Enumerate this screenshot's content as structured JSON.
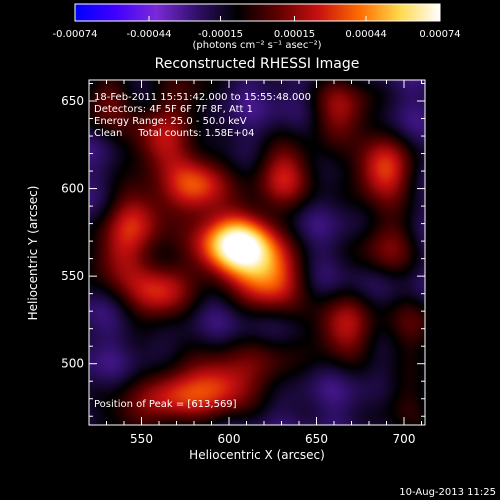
{
  "chart_data": {
    "type": "heatmap",
    "title": "Reconstructed RHESSI Image",
    "xlabel": "Heliocentric X (arcsec)",
    "ylabel": "Heliocentric Y (arcsec)",
    "xlim": [
      520,
      712
    ],
    "ylim": [
      465,
      662
    ],
    "xticks": [
      550,
      600,
      650,
      700
    ],
    "yticks": [
      500,
      550,
      600,
      650
    ],
    "colorbar": {
      "min": -0.00074,
      "max": 0.00074,
      "ticks": [
        "-0.00074",
        "-0.00044",
        "-0.00015",
        "0.00015",
        "0.00044",
        "0.00074"
      ],
      "tick_values": [
        -0.00074,
        -0.00044,
        -0.00015,
        0.00015,
        0.00044,
        0.00074
      ],
      "unit_label": "(photons cm⁻² s⁻¹ asec⁻²)",
      "colors": [
        "#0000ff",
        "#4000ff",
        "#7a2ad8",
        "#30106a",
        "#000000",
        "#600000",
        "#c81010",
        "#ff6a00",
        "#ffd84a",
        "#ffffff"
      ]
    },
    "annotations": [
      "18-Feb-2011 15:51:42.000 to 15:55:48.000",
      "Detectors: 4F 5F 6F 7F 8F, Att 1",
      "Energy Range: 25.0 - 50.0 keV",
      "Clean     Total counts: 1.58E+04"
    ],
    "peak_text": "Position of Peak = [613,569]",
    "peak": [
      613,
      569
    ],
    "sources": [
      {
        "x": 611,
        "y": 568,
        "v": 0.00074
      },
      {
        "x": 594,
        "y": 566,
        "v": 0.00052
      },
      {
        "x": 624,
        "y": 548,
        "v": 0.00058
      },
      {
        "x": 582,
        "y": 602,
        "v": 0.00056
      },
      {
        "x": 560,
        "y": 626,
        "v": 0.00042
      },
      {
        "x": 548,
        "y": 584,
        "v": 0.00044
      },
      {
        "x": 535,
        "y": 560,
        "v": 0.00036
      },
      {
        "x": 560,
        "y": 540,
        "v": 0.0005
      },
      {
        "x": 632,
        "y": 608,
        "v": 0.00048
      },
      {
        "x": 688,
        "y": 610,
        "v": 0.00056
      },
      {
        "x": 665,
        "y": 645,
        "v": 0.00042
      },
      {
        "x": 690,
        "y": 568,
        "v": 0.00034
      },
      {
        "x": 665,
        "y": 520,
        "v": 0.00046
      },
      {
        "x": 595,
        "y": 488,
        "v": 0.00052
      },
      {
        "x": 568,
        "y": 482,
        "v": 0.00046
      },
      {
        "x": 623,
        "y": 498,
        "v": 0.00026
      },
      {
        "x": 540,
        "y": 470,
        "v": 0.00024
      },
      {
        "x": 700,
        "y": 478,
        "v": 0.00022
      },
      {
        "x": 706,
        "y": 520,
        "v": 0.00026
      },
      {
        "x": 575,
        "y": 655,
        "v": 0.00026
      },
      {
        "x": 530,
        "y": 650,
        "v": 0.0003
      }
    ]
  },
  "footer": {
    "date": "10-Aug-2013 11:25"
  }
}
